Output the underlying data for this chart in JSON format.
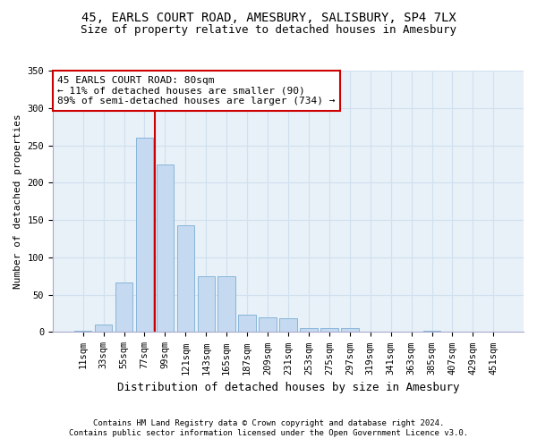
{
  "title": "45, EARLS COURT ROAD, AMESBURY, SALISBURY, SP4 7LX",
  "subtitle": "Size of property relative to detached houses in Amesbury",
  "xlabel": "Distribution of detached houses by size in Amesbury",
  "ylabel": "Number of detached properties",
  "categories": [
    "11sqm",
    "33sqm",
    "55sqm",
    "77sqm",
    "99sqm",
    "121sqm",
    "143sqm",
    "165sqm",
    "187sqm",
    "209sqm",
    "231sqm",
    "253sqm",
    "275sqm",
    "297sqm",
    "319sqm",
    "341sqm",
    "363sqm",
    "385sqm",
    "407sqm",
    "429sqm",
    "451sqm"
  ],
  "values": [
    2,
    10,
    66,
    260,
    224,
    143,
    75,
    75,
    23,
    20,
    19,
    5,
    5,
    5,
    1,
    0,
    0,
    2,
    0,
    0,
    1
  ],
  "bar_color": "#c5d9f1",
  "bar_edge_color": "#7bafd4",
  "grid_color": "#d0e0ef",
  "background_color": "#e8f0f8",
  "vline_color": "#cc0000",
  "vline_x_index": 3,
  "annotation_line1": "45 EARLS COURT ROAD: 80sqm",
  "annotation_line2": "← 11% of detached houses are smaller (90)",
  "annotation_line3": "89% of semi-detached houses are larger (734) →",
  "annotation_box_color": "#ffffff",
  "annotation_box_edgecolor": "#cc0000",
  "ylim": [
    0,
    350
  ],
  "yticks": [
    0,
    50,
    100,
    150,
    200,
    250,
    300,
    350
  ],
  "footer1": "Contains HM Land Registry data © Crown copyright and database right 2024.",
  "footer2": "Contains public sector information licensed under the Open Government Licence v3.0.",
  "title_fontsize": 10,
  "subtitle_fontsize": 9,
  "tick_fontsize": 7.5,
  "xlabel_fontsize": 9,
  "ylabel_fontsize": 8,
  "annotation_fontsize": 8,
  "footer_fontsize": 6.5
}
